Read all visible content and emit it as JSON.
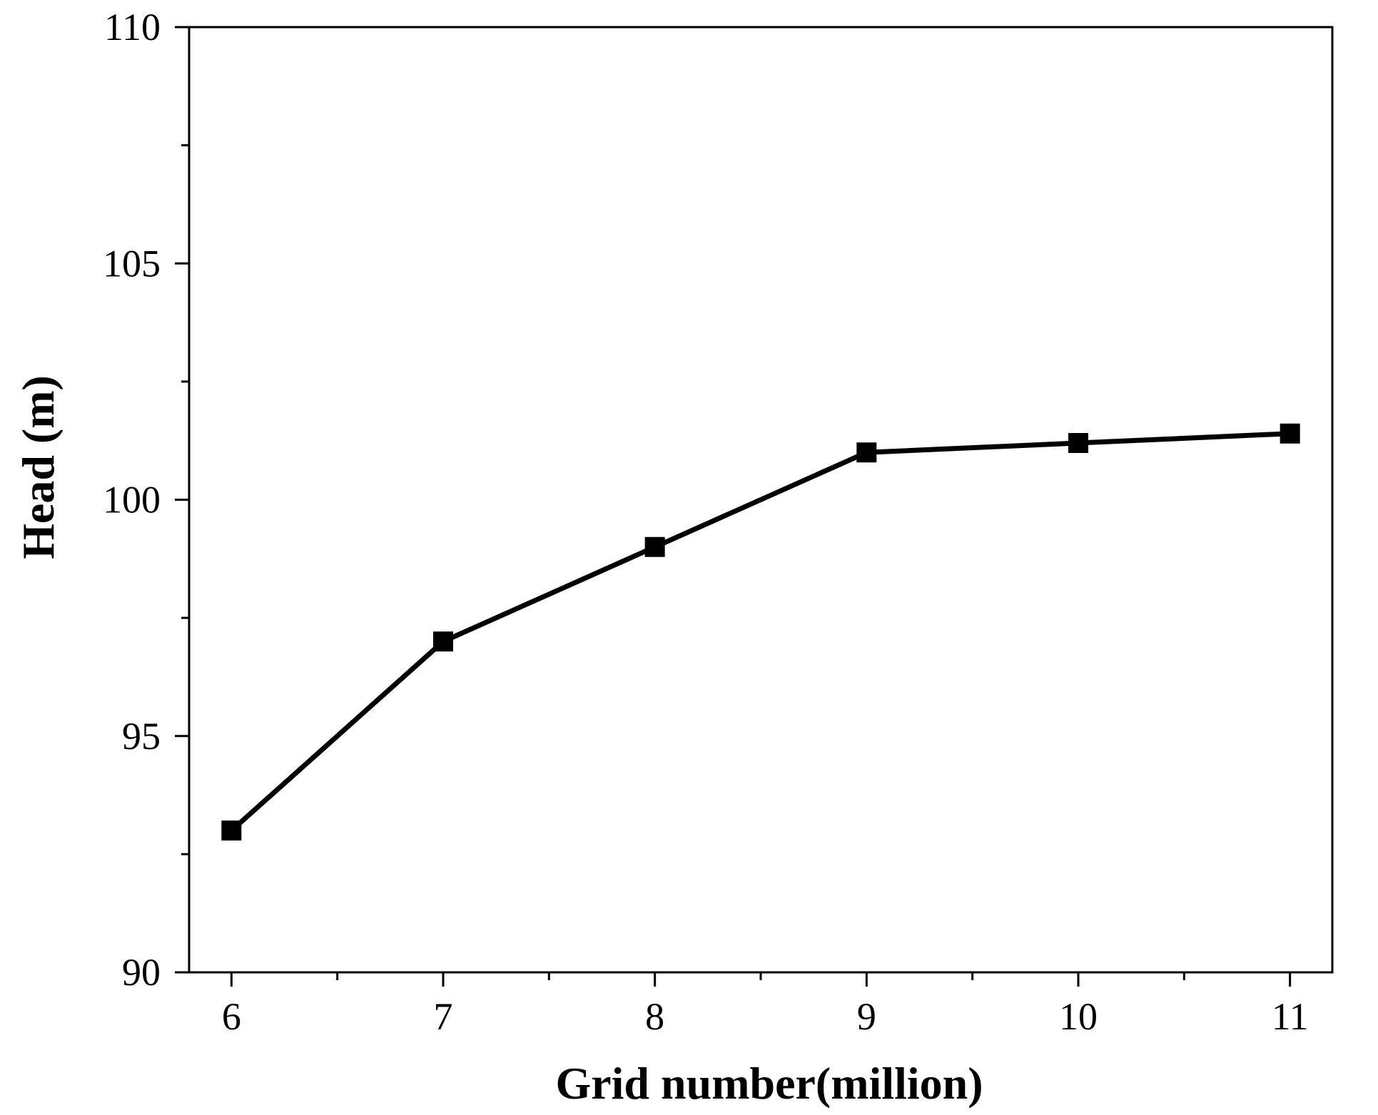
{
  "chart_data": {
    "type": "line",
    "xlabel": "Grid number(million)",
    "ylabel": "Head (m)",
    "xlim": [
      5.8,
      11.2
    ],
    "ylim": [
      90,
      110
    ],
    "x_ticks": [
      6,
      7,
      8,
      9,
      10,
      11
    ],
    "x_tick_labels": [
      "6",
      "7",
      "8",
      "9",
      "10",
      "11"
    ],
    "x_minor_ticks": [
      6.5,
      7.5,
      8.5,
      9.5,
      10.5
    ],
    "y_ticks": [
      90,
      95,
      100,
      105,
      110
    ],
    "y_tick_labels": [
      "90",
      "95",
      "100",
      "105",
      "110"
    ],
    "y_minor_ticks": [
      92.5,
      97.5,
      102.5,
      107.5
    ],
    "grid": false,
    "marker": "square",
    "line_color": "#000000",
    "series": [
      {
        "x": [
          6,
          7,
          8,
          9,
          10,
          11
        ],
        "values": [
          93.0,
          97.0,
          99.0,
          101.0,
          101.2,
          101.4
        ]
      }
    ]
  }
}
